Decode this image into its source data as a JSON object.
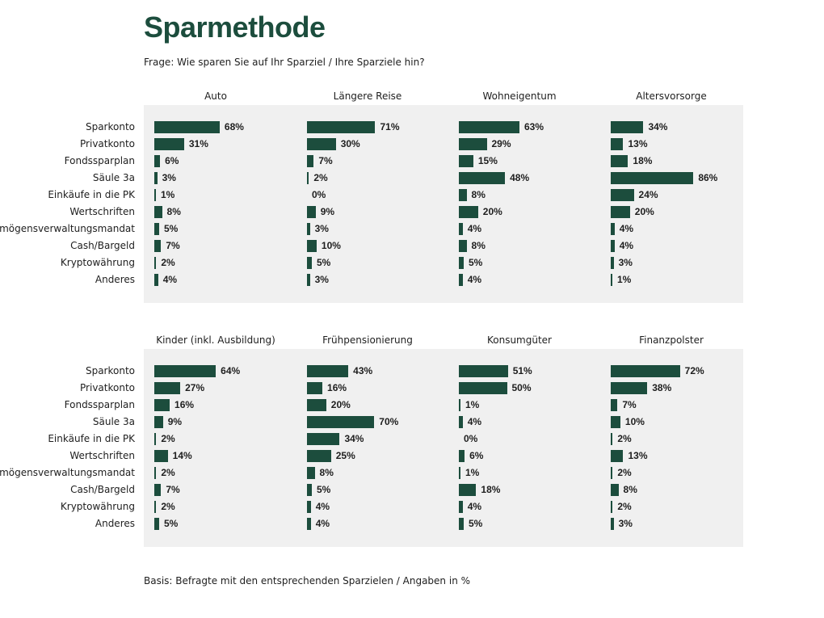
{
  "header": {
    "title": "Sparmethode",
    "question": "Frage: Wie sparen Sie auf Ihr Sparziel / Ihre Sparziele hin?"
  },
  "footer": {
    "basis": "Basis: Befragte mit den entsprechenden Sparzielen / Angaben in %"
  },
  "colors": {
    "bar": "#1c4d3d",
    "panel": "#f0f0f0",
    "title": "#1c4d3d"
  },
  "chart_data": {
    "type": "bar",
    "orientation": "horizontal",
    "unit": "%",
    "categories": [
      "Sparkonto",
      "Privatkonto",
      "Fondssparplan",
      "Säule 3a",
      "Einkäufe in die PK",
      "Wertschriften",
      "Vermögensverwaltungsmandat",
      "Cash/Bargeld",
      "Kryptowährung",
      "Anderes"
    ],
    "blocks": [
      {
        "panels": [
          {
            "title": "Auto",
            "values": [
              68,
              31,
              6,
              3,
              1,
              8,
              5,
              7,
              2,
              4
            ]
          },
          {
            "title": "Längere Reise",
            "values": [
              71,
              30,
              7,
              2,
              0,
              9,
              3,
              10,
              5,
              3
            ]
          },
          {
            "title": "Wohneigentum",
            "values": [
              63,
              29,
              15,
              48,
              8,
              20,
              4,
              8,
              5,
              4
            ]
          },
          {
            "title": "Altersvorsorge",
            "values": [
              34,
              13,
              18,
              86,
              24,
              20,
              4,
              4,
              3,
              1
            ]
          }
        ]
      },
      {
        "panels": [
          {
            "title": "Kinder (inkl. Ausbildung)",
            "values": [
              64,
              27,
              16,
              9,
              2,
              14,
              2,
              7,
              2,
              5
            ]
          },
          {
            "title": "Frühpensionierung",
            "values": [
              43,
              16,
              20,
              70,
              34,
              25,
              8,
              5,
              4,
              4
            ]
          },
          {
            "title": "Konsumgüter",
            "values": [
              51,
              50,
              1,
              4,
              0,
              6,
              1,
              18,
              4,
              5
            ]
          },
          {
            "title": "Finanzpolster",
            "values": [
              72,
              38,
              7,
              10,
              2,
              13,
              2,
              8,
              2,
              3
            ]
          }
        ]
      }
    ]
  }
}
